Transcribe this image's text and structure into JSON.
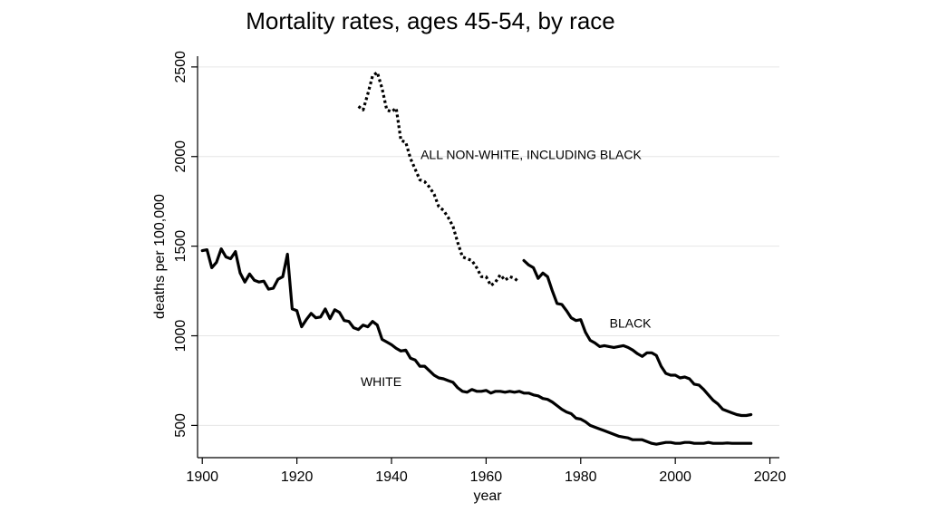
{
  "chart_data": {
    "type": "line",
    "title": "Mortality rates, ages 45-54, by race",
    "xlabel": "year",
    "ylabel": "deaths per 100,000",
    "xlim": [
      1899,
      2022
    ],
    "ylim": [
      320,
      2560
    ],
    "xticks": [
      1900,
      1920,
      1940,
      1960,
      1980,
      2000,
      2020
    ],
    "yticks": [
      500,
      1000,
      1500,
      2000,
      2500
    ],
    "grid": true,
    "series": [
      {
        "name": "WHITE",
        "style": "solid",
        "color": "#000000",
        "label_pos": [
          1937.8,
          720
        ],
        "x": [
          1900,
          1901,
          1902,
          1903,
          1904,
          1905,
          1906,
          1907,
          1908,
          1909,
          1910,
          1911,
          1912,
          1913,
          1914,
          1915,
          1916,
          1917,
          1918,
          1919,
          1920,
          1921,
          1922,
          1923,
          1924,
          1925,
          1926,
          1927,
          1928,
          1929,
          1930,
          1931,
          1932,
          1933,
          1934,
          1935,
          1936,
          1937,
          1938,
          1939,
          1940,
          1941,
          1942,
          1943,
          1944,
          1945,
          1946,
          1947,
          1948,
          1949,
          1950,
          1951,
          1952,
          1953,
          1954,
          1955,
          1956,
          1957,
          1958,
          1959,
          1960,
          1961,
          1962,
          1963,
          1964,
          1965,
          1966,
          1967,
          1968,
          1969,
          1970,
          1971,
          1972,
          1973,
          1974,
          1975,
          1976,
          1977,
          1978,
          1979,
          1980,
          1981,
          1982,
          1983,
          1984,
          1985,
          1986,
          1987,
          1988,
          1989,
          1990,
          1991,
          1992,
          1993,
          1994,
          1995,
          1996,
          1997,
          1998,
          1999,
          2000,
          2001,
          2002,
          2003,
          2004,
          2005,
          2006,
          2007,
          2008,
          2009,
          2010,
          2011,
          2012,
          2013,
          2014,
          2015,
          2016
        ],
        "y": [
          1475,
          1480,
          1380,
          1410,
          1485,
          1440,
          1430,
          1470,
          1350,
          1300,
          1345,
          1310,
          1300,
          1305,
          1260,
          1265,
          1315,
          1330,
          1455,
          1150,
          1140,
          1050,
          1090,
          1125,
          1100,
          1105,
          1150,
          1095,
          1145,
          1130,
          1085,
          1080,
          1045,
          1035,
          1060,
          1050,
          1080,
          1060,
          980,
          965,
          950,
          930,
          915,
          920,
          875,
          865,
          830,
          830,
          805,
          780,
          765,
          760,
          750,
          740,
          710,
          690,
          685,
          700,
          690,
          690,
          695,
          680,
          690,
          690,
          685,
          690,
          685,
          690,
          680,
          680,
          670,
          665,
          650,
          645,
          630,
          610,
          590,
          575,
          565,
          540,
          535,
          520,
          500,
          490,
          480,
          470,
          460,
          450,
          440,
          435,
          430,
          420,
          420,
          420,
          410,
          400,
          395,
          400,
          405,
          405,
          400,
          400,
          405,
          405,
          400,
          400,
          400,
          405,
          400,
          400,
          400,
          402,
          400,
          400,
          400,
          400,
          400
        ]
      },
      {
        "name": "BLACK",
        "style": "solid",
        "color": "#000000",
        "label_pos": [
          1990.5,
          1045
        ],
        "x": [
          1968,
          1969,
          1970,
          1971,
          1972,
          1973,
          1974,
          1975,
          1976,
          1977,
          1978,
          1979,
          1980,
          1981,
          1982,
          1983,
          1984,
          1985,
          1986,
          1987,
          1988,
          1989,
          1990,
          1991,
          1992,
          1993,
          1994,
          1995,
          1996,
          1997,
          1998,
          1999,
          2000,
          2001,
          2002,
          2003,
          2004,
          2005,
          2006,
          2007,
          2008,
          2009,
          2010,
          2011,
          2012,
          2013,
          2014,
          2015,
          2016
        ],
        "y": [
          1420,
          1395,
          1380,
          1320,
          1350,
          1330,
          1250,
          1180,
          1175,
          1140,
          1100,
          1085,
          1090,
          1020,
          975,
          960,
          940,
          945,
          940,
          935,
          940,
          945,
          935,
          920,
          900,
          885,
          905,
          905,
          890,
          830,
          790,
          780,
          780,
          765,
          770,
          760,
          730,
          725,
          700,
          670,
          640,
          620,
          590,
          580,
          570,
          560,
          555,
          555,
          560
        ]
      },
      {
        "name": "ALL NON-WHITE, INCLUDING BLACK",
        "style": "dotted",
        "color": "#000000",
        "label_pos": [
          1969.5,
          1985
        ],
        "x": [
          1933,
          1934,
          1935,
          1936,
          1937,
          1938,
          1939,
          1940,
          1941,
          1942,
          1943,
          1944,
          1945,
          1946,
          1947,
          1948,
          1949,
          1950,
          1951,
          1952,
          1953,
          1954,
          1955,
          1956,
          1957,
          1958,
          1959,
          1960,
          1961,
          1962,
          1963,
          1964,
          1965,
          1966,
          1967
        ],
        "y": [
          2280,
          2260,
          2350,
          2450,
          2470,
          2380,
          2260,
          2250,
          2270,
          2090,
          2080,
          1990,
          1930,
          1870,
          1860,
          1830,
          1790,
          1720,
          1700,
          1660,
          1610,
          1520,
          1440,
          1430,
          1420,
          1380,
          1330,
          1330,
          1280,
          1300,
          1340,
          1310,
          1330,
          1320,
          1300
        ]
      }
    ]
  }
}
